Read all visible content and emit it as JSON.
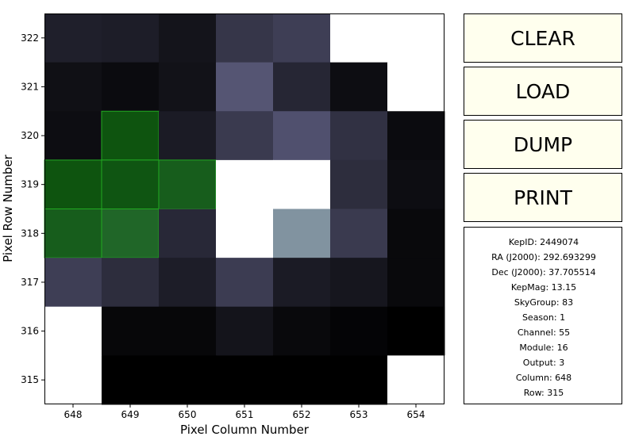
{
  "colors": {
    "button_bg": "#ffffee",
    "selected_pixel_color": "green",
    "colormap": "bone"
  },
  "buttons": [
    {
      "label": "CLEAR"
    },
    {
      "label": "LOAD"
    },
    {
      "label": "DUMP"
    },
    {
      "label": "PRINT"
    }
  ],
  "info": {
    "kepid": "KepID: 2449074",
    "ra": "RA (J2000): 292.693299",
    "dec": "Dec (J2000): 37.705514",
    "kepmag": "KepMag: 13.15",
    "skygroup": "SkyGroup: 83",
    "season": "Season: 1",
    "channel": "Channel: 55",
    "module": "Module: 16",
    "output": "Output: 3",
    "column": "Column: 648",
    "row": "Row: 315"
  },
  "chart_data": {
    "type": "heatmap",
    "xlabel": "Pixel Column Number",
    "ylabel": "Pixel Row Number",
    "x": [
      648,
      649,
      650,
      651,
      652,
      653,
      654
    ],
    "y": [
      315,
      316,
      317,
      318,
      319,
      320,
      321,
      322
    ],
    "x_ticks": [
      "648",
      "649",
      "650",
      "651",
      "652",
      "653",
      "654"
    ],
    "y_ticks": [
      "315",
      "316",
      "317",
      "318",
      "319",
      "320",
      "321",
      "322"
    ],
    "colormap": "bone",
    "selected_pixels": [
      [
        649,
        320
      ],
      [
        648,
        319
      ],
      [
        649,
        319
      ],
      [
        650,
        319
      ],
      [
        648,
        318
      ],
      [
        649,
        318
      ]
    ],
    "intensity_rows_top_to_bottom": [
      [
        0.14,
        0.13,
        0.09,
        0.24,
        0.28,
        null,
        null
      ],
      [
        0.07,
        0.05,
        0.08,
        0.38,
        0.17,
        0.06,
        null
      ],
      [
        0.06,
        0.04,
        0.12,
        0.26,
        0.36,
        0.22,
        0.05
      ],
      [
        0.04,
        0.06,
        0.13,
        1.0,
        1.0,
        0.2,
        0.06
      ],
      [
        0.13,
        0.22,
        0.18,
        1.0,
        0.58,
        0.26,
        0.04
      ],
      [
        0.28,
        0.2,
        0.13,
        0.27,
        0.12,
        0.1,
        0.04
      ],
      [
        1.0,
        0.03,
        0.03,
        0.09,
        0.04,
        0.02,
        0.0
      ],
      [
        1.0,
        0.0,
        0.0,
        0.0,
        0.0,
        0.0,
        1.0
      ]
    ],
    "grid": false
  }
}
